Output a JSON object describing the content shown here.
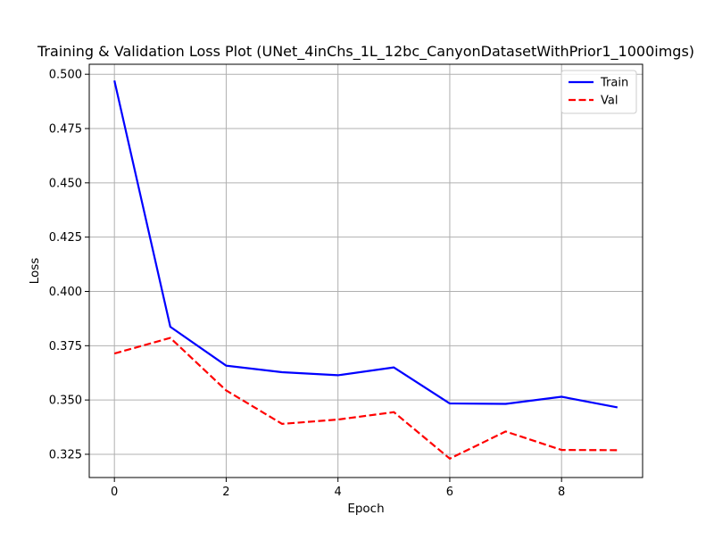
{
  "chart_data": {
    "type": "line",
    "title": "Training & Validation Loss Plot (UNet_4inChs_1L_12bc_CanyonDatasetWithPrior1_1000imgs)",
    "xlabel": "Epoch",
    "ylabel": "Loss",
    "xlim": [
      -0.45,
      9.45
    ],
    "ylim": [
      0.3143,
      0.5046
    ],
    "xticks": [
      0,
      2,
      4,
      6,
      8
    ],
    "xtick_labels": [
      "0",
      "2",
      "4",
      "6",
      "8"
    ],
    "yticks": [
      0.325,
      0.35,
      0.375,
      0.4,
      0.425,
      0.45,
      0.475,
      0.5
    ],
    "ytick_labels": [
      "0.325",
      "0.350",
      "0.375",
      "0.400",
      "0.425",
      "0.450",
      "0.475",
      "0.500"
    ],
    "grid": true,
    "legend_position": "top-right",
    "x": [
      0,
      1,
      2,
      3,
      4,
      5,
      6,
      7,
      8,
      9
    ],
    "series": [
      {
        "name": "Train",
        "color": "#0000ff",
        "style": "solid",
        "values": [
          0.4971,
          0.3837,
          0.3658,
          0.3628,
          0.3614,
          0.365,
          0.3484,
          0.3482,
          0.3515,
          0.3466
        ]
      },
      {
        "name": "Val",
        "color": "#ff0000",
        "style": "dashed",
        "values": [
          0.3714,
          0.3786,
          0.3544,
          0.339,
          0.341,
          0.3444,
          0.323,
          0.3355,
          0.327,
          0.3269
        ]
      }
    ]
  }
}
